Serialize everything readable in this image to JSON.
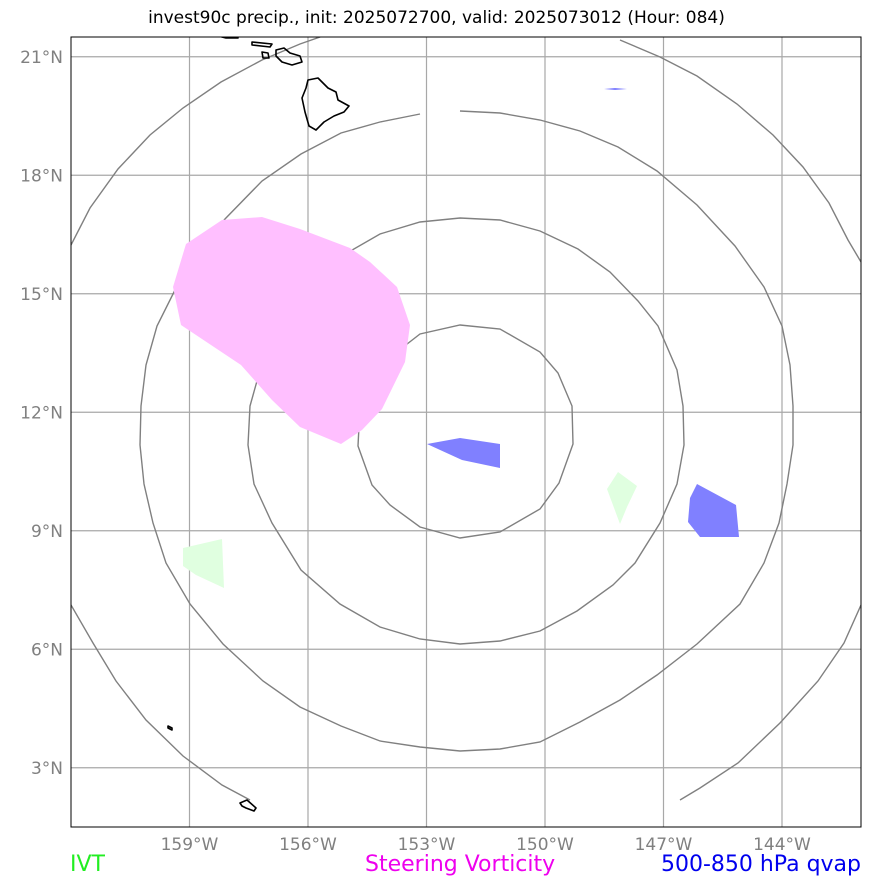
{
  "title": "invest90c precip., init: 2025072700, valid: 2025073012 (Hour: 084)",
  "map": {
    "lon_range": [
      -162,
      -142
    ],
    "lat_range": [
      1.5,
      21.5
    ],
    "center": {
      "lon": -152,
      "lat": 11.3
    },
    "lon_ticks": [
      {
        "value": -159,
        "label": "159°W"
      },
      {
        "value": -156,
        "label": "156°W"
      },
      {
        "value": -153,
        "label": "153°W"
      },
      {
        "value": -150,
        "label": "150°W"
      },
      {
        "value": -147,
        "label": "147°W"
      },
      {
        "value": -144,
        "label": "144°W"
      }
    ],
    "lat_ticks": [
      {
        "value": 21,
        "label": "21°N"
      },
      {
        "value": 18,
        "label": "18°N"
      },
      {
        "value": 15,
        "label": "15°N"
      },
      {
        "value": 12,
        "label": "12°N"
      },
      {
        "value": 9,
        "label": "9°N"
      },
      {
        "value": 6,
        "label": "6°N"
      },
      {
        "value": 3,
        "label": "3°N"
      }
    ],
    "gridlines": true
  },
  "legend": {
    "ivt": {
      "label": "IVT",
      "color": "#22ee22"
    },
    "vorticity": {
      "label": "Steering Vorticity",
      "color": "#ee00ee"
    },
    "qvap": {
      "label": "500-850 hPa qvap",
      "color": "#0000ee"
    }
  },
  "fill_colors": {
    "ivt": "#e0ffe0",
    "vorticity": "#ffbfff",
    "qvap": "#8080ff"
  }
}
